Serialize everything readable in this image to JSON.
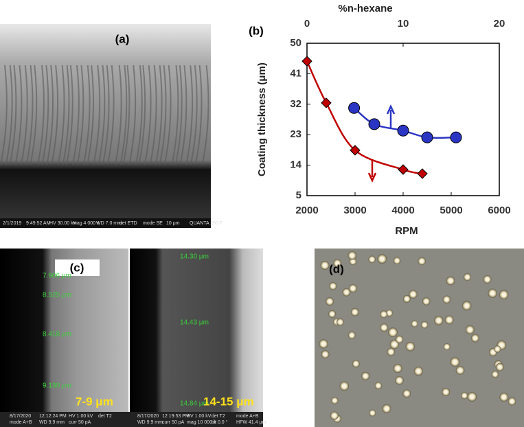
{
  "chart_data": {
    "type": "line",
    "xlabel": "RPM",
    "x2label": "%n-hexane",
    "ylabel": "Coating thickness (μm)",
    "xlim": [
      2000,
      6000
    ],
    "xticks": [
      2000,
      3000,
      4000,
      5000,
      6000
    ],
    "x2lim": [
      0,
      20
    ],
    "x2ticks": [
      0,
      10,
      20
    ],
    "ylim": [
      5,
      50
    ],
    "yticks": [
      5,
      14,
      23,
      32,
      41,
      50
    ],
    "series": [
      {
        "color": "#c00000",
        "marker": "diamond",
        "axis": "x",
        "x": [
          2000,
          2400,
          3000,
          4000,
          4400
        ],
        "values": [
          44.7,
          32.4,
          18.4,
          12.7,
          11.5
        ]
      },
      {
        "color": "#2b35c4",
        "marker": "circle",
        "axis": "x2",
        "x": [
          4.9,
          7.0,
          10.0,
          12.5,
          15.5
        ],
        "values": [
          30.9,
          26.1,
          24.2,
          22.2,
          22.2
        ]
      }
    ]
  },
  "panels": {
    "a": {
      "label": "(a)",
      "info": [
        "2/1/2019",
        "9:49:52 AM",
        "HV 30.00 kV",
        "mag 4 000 x",
        "WD 7.0 mm",
        "det ETD",
        "mode SE",
        "10 μm",
        "QUANTA 200 F"
      ]
    },
    "b": {
      "label": "(b)"
    },
    "c": {
      "label": "(c)",
      "left": {
        "measures": [
          "7.906 μm",
          "8.525 μm",
          "8.418 μm",
          "9.130 μm"
        ],
        "caption": "7-9 μm",
        "info": [
          "8/17/2020",
          "12:12:24 PM",
          "HV 1.00 kV",
          "det T2",
          "mode A+B",
          "WD 9.9 mm",
          "curr 50 pA"
        ]
      },
      "right": {
        "measures": [
          "14.30 μm",
          "14.43 μm",
          "14.84 μm"
        ],
        "caption": "14-15 μm",
        "info": [
          "8/17/2020",
          "12:19:53 PM",
          "HV 1.00 kV",
          "det T2",
          "mode A+B",
          "WD 9.9 mm",
          "curr 50 pA",
          "mag 10 000 x",
          "tilt 0.0 °",
          "HFW 41.4 μm"
        ]
      }
    },
    "d": {
      "label": "(d)"
    }
  }
}
